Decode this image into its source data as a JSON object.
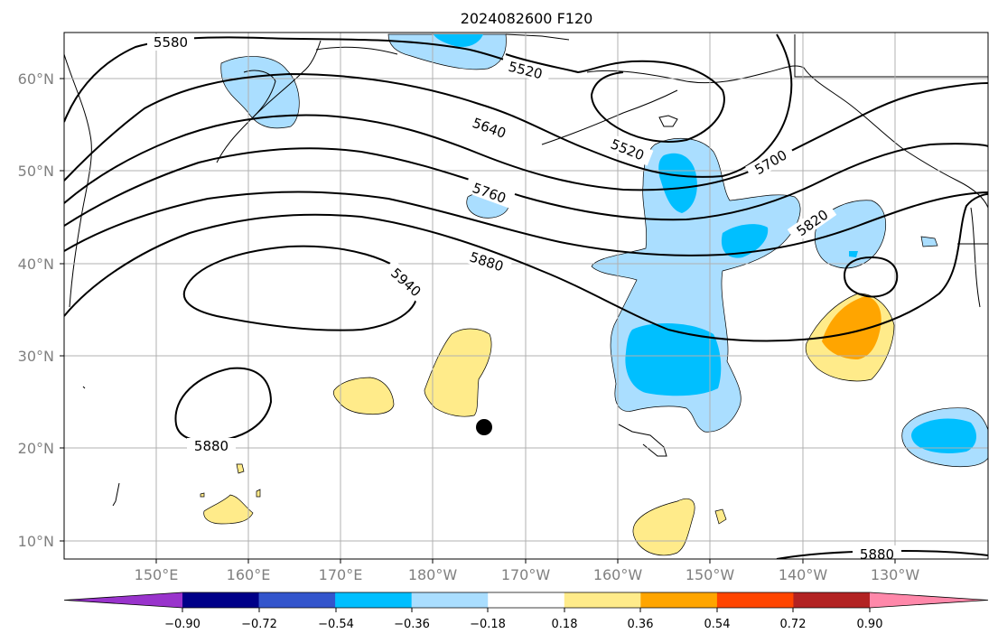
{
  "title": "2024082600 F120",
  "latitude_labels": [
    "60°N",
    "50°N",
    "40°N",
    "30°N",
    "20°N",
    "10°N"
  ],
  "longitude_labels": [
    "150°E",
    "160°E",
    "170°E",
    "180°W",
    "170°W",
    "160°W",
    "150°W",
    "140°W",
    "130°W"
  ],
  "contour_labels": [
    "5580",
    "5520",
    "5640",
    "5520",
    "5760",
    "5700",
    "5820",
    "5880",
    "5940",
    "5880",
    "5880"
  ],
  "colorbar": {
    "colors": [
      "#9933cc",
      "#000088",
      "#3355cc",
      "#00bfff",
      "#aadeff",
      "#ffffff",
      "#ffeb8a",
      "#ffa500",
      "#ff4500",
      "#b22222",
      "#ff88aa"
    ],
    "tick_labels": [
      "−0.90",
      "−0.72",
      "−0.54",
      "−0.36",
      "−0.18",
      "0.18",
      "0.36",
      "0.54",
      "0.72",
      "0.90"
    ]
  }
}
